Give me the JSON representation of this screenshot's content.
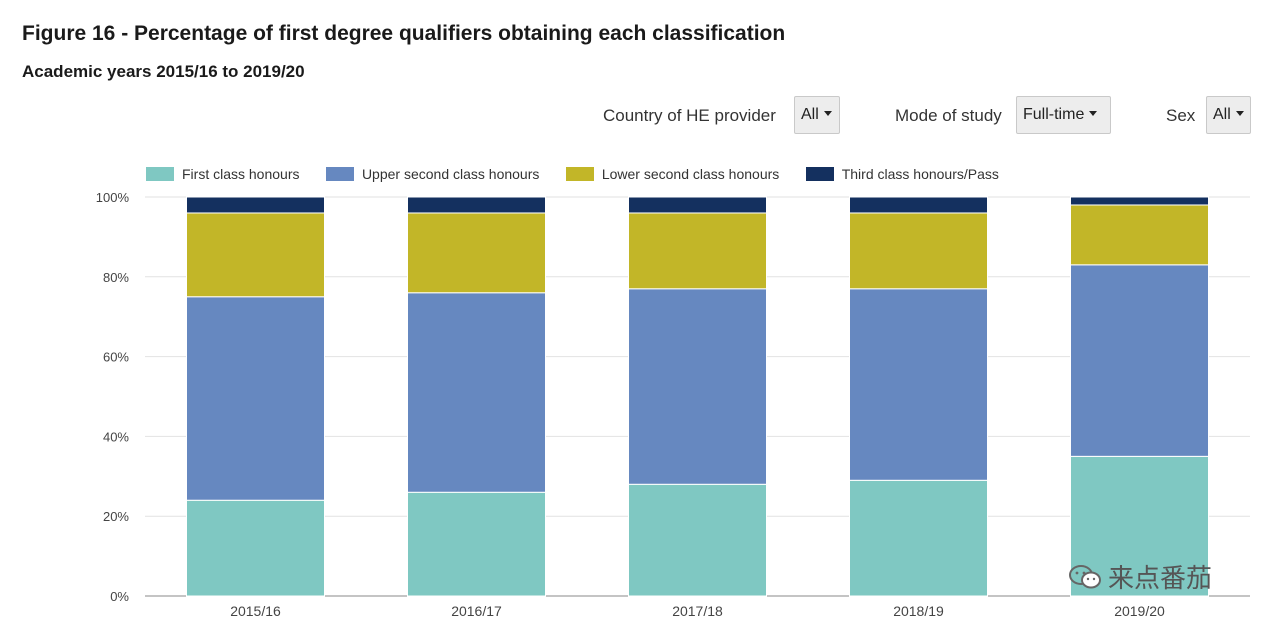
{
  "header": {
    "title": "Figure 16 - Percentage of first degree qualifiers obtaining each classification",
    "subtitle": "Academic years 2015/16 to 2019/20"
  },
  "filters": {
    "country_label": "Country of HE provider",
    "country_value": "All",
    "mode_label": "Mode of study",
    "mode_value": "Full-time",
    "sex_label": "Sex",
    "sex_value": "All"
  },
  "watermark": {
    "text": "来点番茄"
  },
  "chart_data": {
    "type": "bar",
    "stacked": true,
    "categories": [
      "2015/16",
      "2016/17",
      "2017/18",
      "2018/19",
      "2019/20"
    ],
    "series": [
      {
        "name": "First class honours",
        "color": "#7fc8c2",
        "values": [
          24,
          26,
          28,
          29,
          35
        ]
      },
      {
        "name": "Upper second class honours",
        "color": "#6688c0",
        "values": [
          51,
          50,
          49,
          48,
          48
        ]
      },
      {
        "name": "Lower second class honours",
        "color": "#c2b628",
        "values": [
          21,
          20,
          19,
          19,
          15
        ]
      },
      {
        "name": "Third class honours/Pass",
        "color": "#14305f",
        "values": [
          4,
          4,
          4,
          4,
          2
        ]
      }
    ],
    "ylim": [
      0,
      100
    ],
    "yticks": [
      "0%",
      "20%",
      "40%",
      "60%",
      "80%",
      "100%"
    ],
    "xlabel": "",
    "ylabel": "",
    "legend": "top-left",
    "grid": true
  }
}
